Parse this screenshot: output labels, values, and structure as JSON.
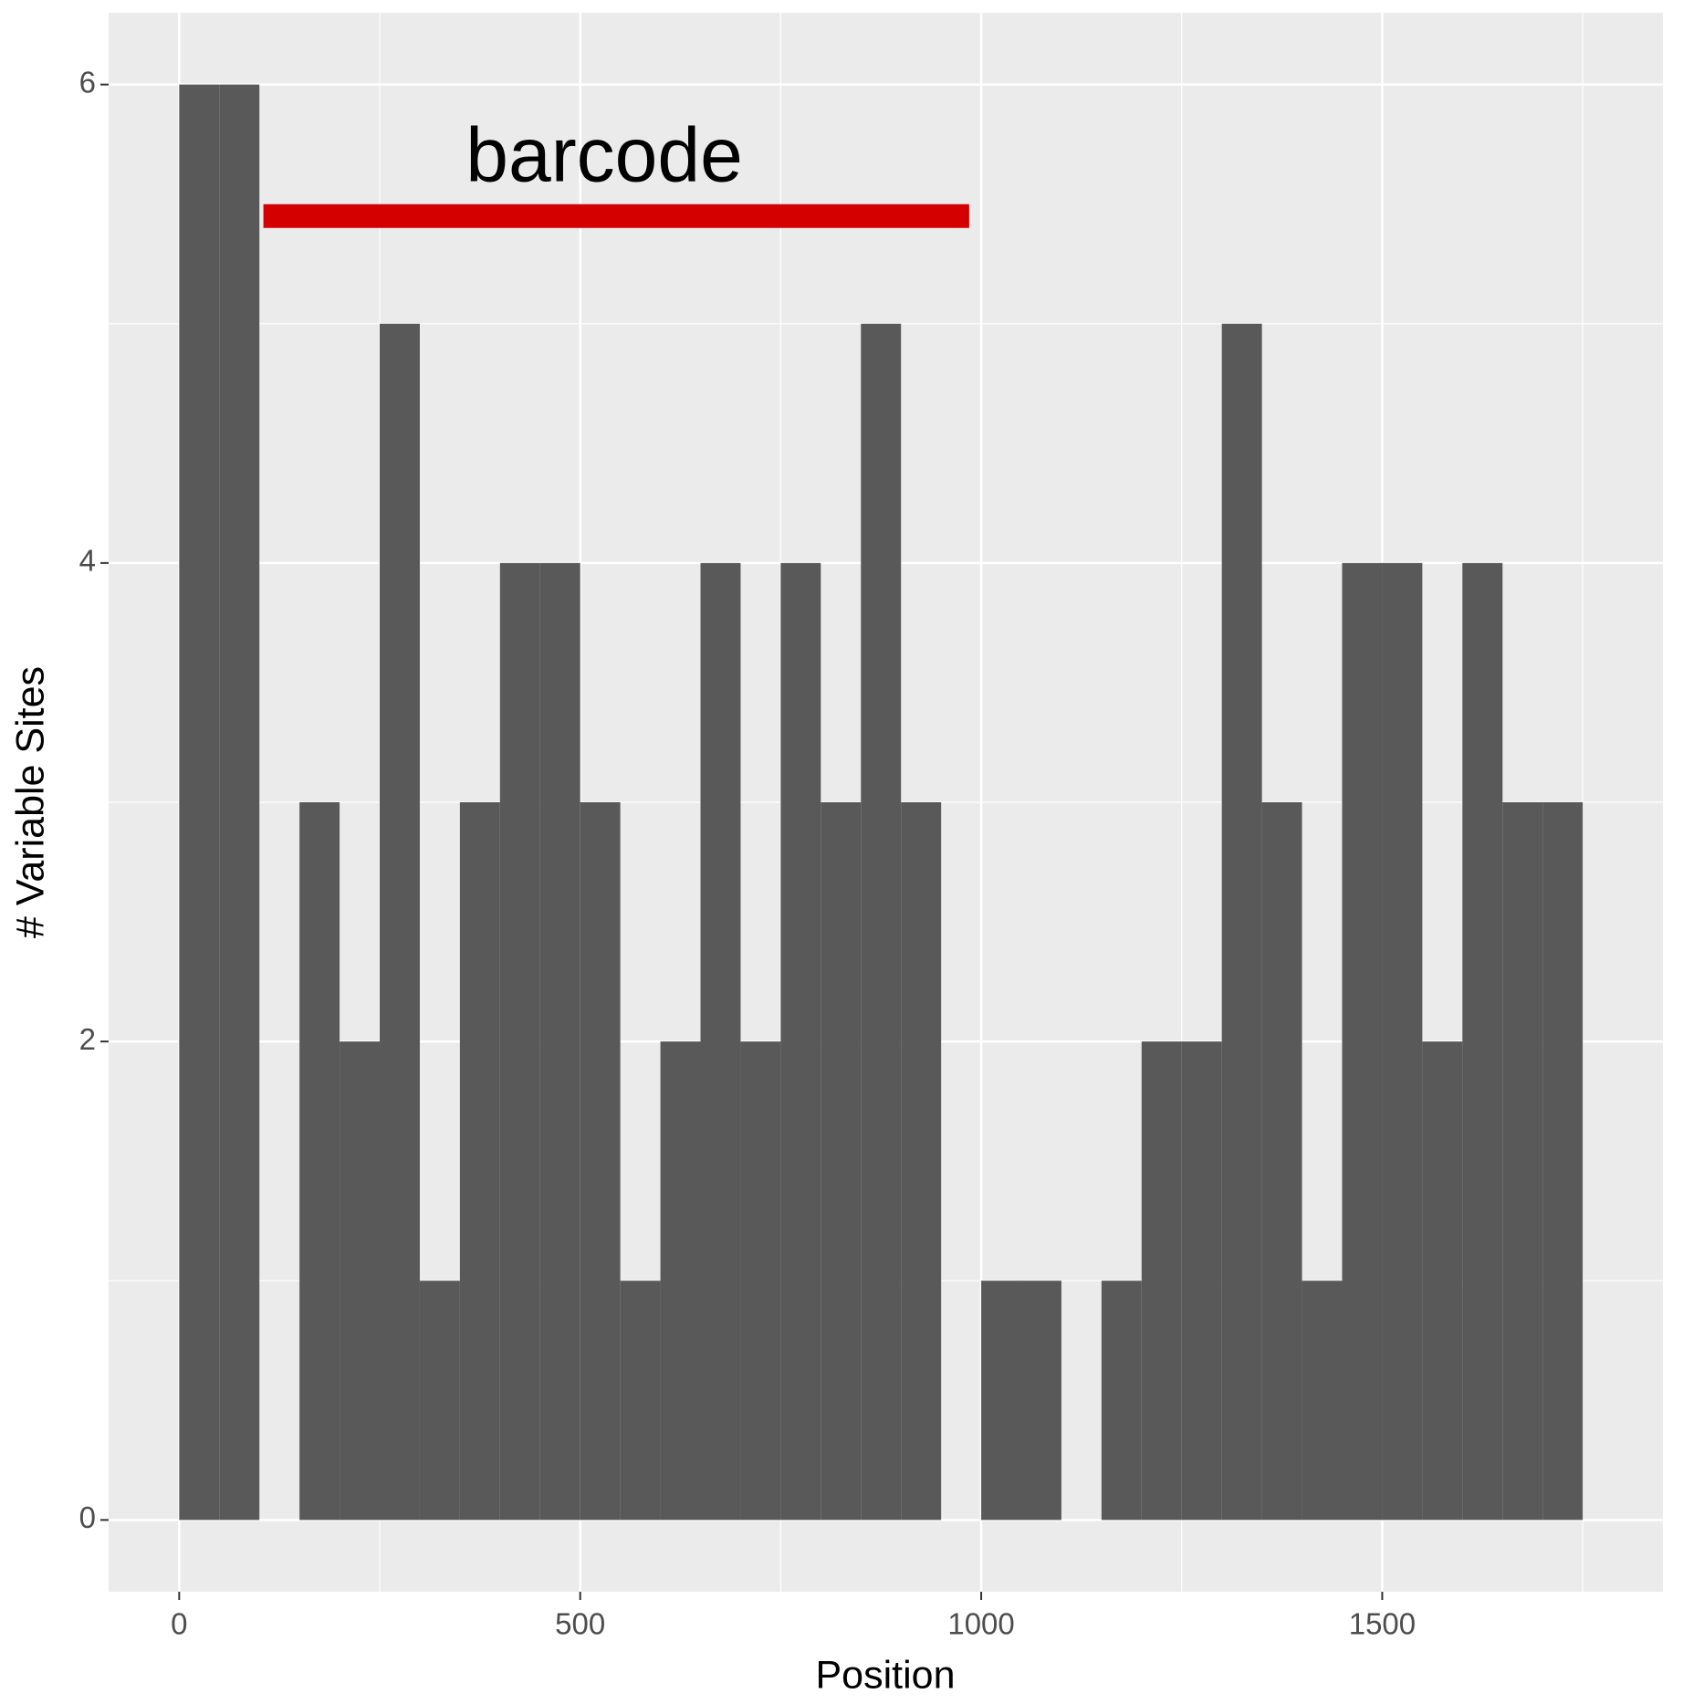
{
  "chart_data": {
    "type": "histogram",
    "x_label": "Position",
    "y_label": "# Variable Sites",
    "bins": [
      0,
      50,
      100,
      150,
      200,
      250,
      300,
      350,
      400,
      450,
      500,
      550,
      600,
      650,
      700,
      750,
      800,
      850,
      900,
      950,
      1000,
      1050,
      1100,
      1150,
      1200,
      1250,
      1300,
      1350,
      1400,
      1450,
      1500,
      1550,
      1600,
      1650,
      1700,
      1750
    ],
    "values": [
      6,
      6,
      0,
      3,
      2,
      5,
      1,
      3,
      4,
      4,
      3,
      1,
      2,
      4,
      2,
      4,
      3,
      5,
      3,
      0,
      1,
      1,
      0,
      1,
      2,
      2,
      5,
      3,
      1,
      4,
      4,
      2,
      4,
      3,
      3
    ],
    "color": "#595959",
    "xlim": [
      -88,
      1850
    ],
    "ylim": [
      -0.3,
      6.3
    ],
    "xticks": [
      0,
      500,
      1000,
      1500
    ],
    "yticks": [
      0,
      2,
      4,
      6
    ],
    "grid": true,
    "annotation": {
      "text": "barcode",
      "x": 530,
      "y": 5.68
    },
    "segment": {
      "x": [
        105,
        985
      ],
      "y": 5.45,
      "color": "#d40000"
    }
  }
}
